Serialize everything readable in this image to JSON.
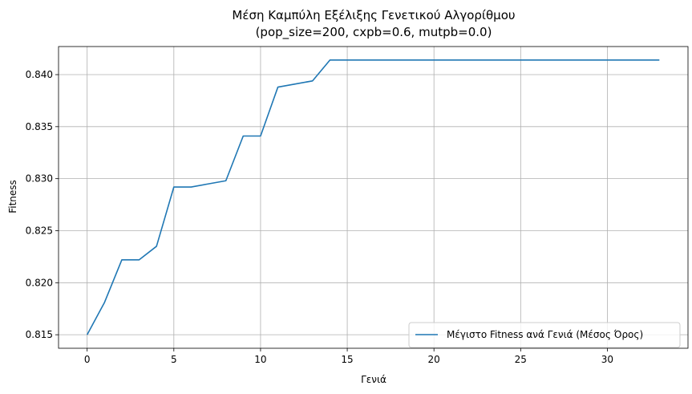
{
  "chart_data": {
    "type": "line",
    "title": "Μέση Καμπύλη Εξέλιξης Γενετικού Αλγορίθμου",
    "subtitle": "(pop_size=200, cxpb=0.6, mutpb=0.0)",
    "xlabel": "Γενιά",
    "ylabel": "Fitness",
    "xlim": [
      -1.65,
      34.65
    ],
    "ylim": [
      0.8137,
      0.8427
    ],
    "xticks": [
      0,
      5,
      10,
      15,
      20,
      25,
      30
    ],
    "xtick_labels": [
      "0",
      "5",
      "10",
      "15",
      "20",
      "25",
      "30"
    ],
    "yticks": [
      0.815,
      0.82,
      0.825,
      0.83,
      0.835,
      0.84
    ],
    "ytick_labels": [
      "0.815",
      "0.820",
      "0.825",
      "0.830",
      "0.835",
      "0.840"
    ],
    "grid": true,
    "legend_position": "lower-right",
    "series": [
      {
        "name": "Μέγιστο Fitness ανά Γενιά (Μέσος Όρος)",
        "color": "#1f77b4",
        "x": [
          0,
          1,
          2,
          3,
          4,
          5,
          6,
          7,
          8,
          9,
          10,
          11,
          12,
          13,
          14,
          15,
          16,
          17,
          18,
          19,
          20,
          21,
          22,
          23,
          24,
          25,
          26,
          27,
          28,
          29,
          30,
          31,
          32,
          33
        ],
        "values": [
          0.815,
          0.8181,
          0.8222,
          0.8222,
          0.8235,
          0.8292,
          0.8292,
          0.8295,
          0.8298,
          0.8341,
          0.8341,
          0.8388,
          0.8391,
          0.8394,
          0.8414,
          0.8414,
          0.8414,
          0.8414,
          0.8414,
          0.8414,
          0.8414,
          0.8414,
          0.8414,
          0.8414,
          0.8414,
          0.8414,
          0.8414,
          0.8414,
          0.8414,
          0.8414,
          0.8414,
          0.8414,
          0.8414,
          0.8414
        ]
      }
    ]
  }
}
